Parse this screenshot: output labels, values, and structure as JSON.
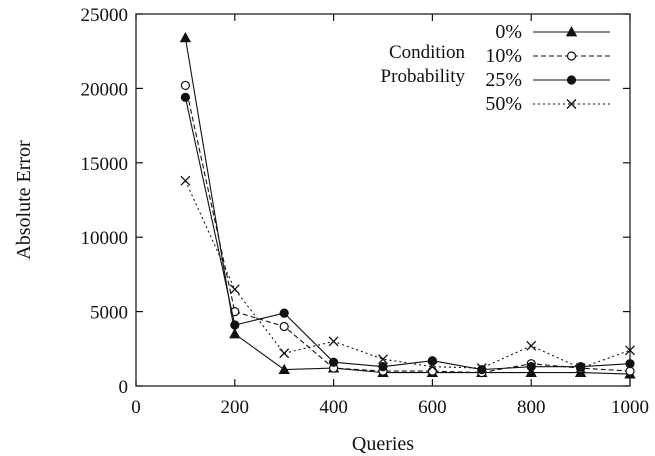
{
  "chart_data": {
    "type": "line",
    "xlabel": "Queries",
    "ylabel": "Absolute Error",
    "xlim": [
      0,
      1000
    ],
    "ylim": [
      0,
      25000
    ],
    "x_ticks": [
      "0",
      "200",
      "400",
      "600",
      "800",
      "1000"
    ],
    "y_ticks": [
      "0",
      "5000",
      "10000",
      "15000",
      "20000",
      "25000"
    ],
    "grid": false,
    "legend": {
      "placement": "top-right",
      "title_lines": [
        "Condition",
        "Probability"
      ]
    },
    "x": [
      100,
      200,
      300,
      400,
      500,
      600,
      700,
      800,
      900,
      1000
    ],
    "series": [
      {
        "name": "0%",
        "marker": "triangle",
        "dash": "solid",
        "values": [
          23400,
          3500,
          1100,
          1200,
          900,
          900,
          900,
          900,
          900,
          800
        ]
      },
      {
        "name": "10%",
        "marker": "open-circle",
        "dash": "dashed",
        "values": [
          20200,
          5000,
          4000,
          1200,
          1000,
          1000,
          900,
          1500,
          1200,
          1000
        ]
      },
      {
        "name": "25%",
        "marker": "filled-circle",
        "dash": "solid",
        "values": [
          19400,
          4100,
          4900,
          1600,
          1300,
          1700,
          1100,
          1300,
          1300,
          1500
        ]
      },
      {
        "name": "50%",
        "marker": "cross",
        "dash": "dotted",
        "values": [
          13800,
          6500,
          2200,
          3000,
          1800,
          1300,
          1200,
          2700,
          1200,
          2400
        ]
      }
    ]
  }
}
